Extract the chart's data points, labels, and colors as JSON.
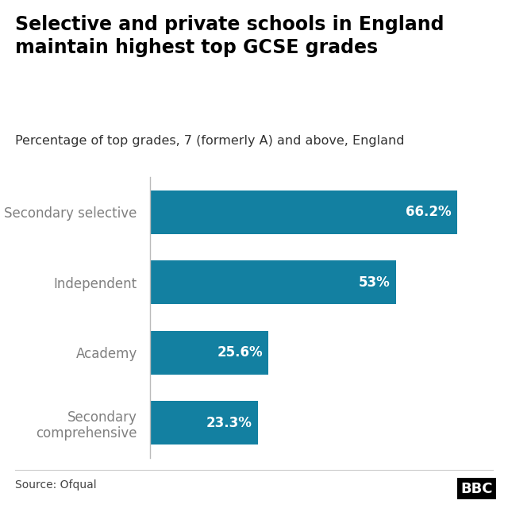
{
  "title": "Selective and private schools in England\nmaintain highest top GCSE grades",
  "subtitle": "Percentage of top grades, 7 (formerly A) and above, England",
  "categories": [
    "Secondary\ncomprehensive",
    "Academy",
    "Independent",
    "Secondary selective"
  ],
  "values": [
    23.3,
    25.6,
    53.0,
    66.2
  ],
  "labels": [
    "23.3%",
    "25.6%",
    "53%",
    "66.2%"
  ],
  "bar_color": "#1380A1",
  "label_color": "#ffffff",
  "title_fontsize": 17,
  "subtitle_fontsize": 11.5,
  "label_fontsize": 12,
  "tick_fontsize": 12,
  "source_text": "Source: Ofqual",
  "source_fontsize": 10,
  "bbc_text": "BBC",
  "background_color": "#ffffff",
  "axis_label_color": "#808080",
  "xlim": [
    0,
    75
  ],
  "bar_height": 0.62
}
